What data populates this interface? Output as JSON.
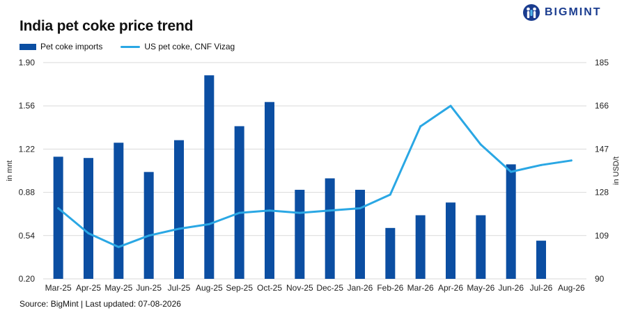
{
  "header": {
    "title": "India pet coke price trend",
    "logo_text": "BIGMINT"
  },
  "footer": {
    "source": "Source: BigMint | Last updated: 07-08-2026"
  },
  "chart_data": {
    "type": "bar",
    "title": "India pet coke price trend",
    "categories": [
      "Mar-25",
      "Apr-25",
      "May-25",
      "Jun-25",
      "Jul-25",
      "Aug-25",
      "Sep-25",
      "Oct-25",
      "Nov-25",
      "Dec-25",
      "Jan-26",
      "Feb-26",
      "Mar-26",
      "Apr-26",
      "May-26",
      "Jun-26",
      "Jul-26",
      "Aug-26"
    ],
    "series": [
      {
        "name": "Pet coke imports",
        "type": "bar",
        "axis": "left",
        "color": "#0b4ea2",
        "values": [
          1.16,
          1.15,
          1.27,
          1.04,
          1.29,
          1.8,
          1.4,
          1.59,
          0.9,
          0.99,
          0.9,
          0.6,
          0.7,
          0.8,
          0.7,
          1.1,
          0.5,
          null
        ]
      },
      {
        "name": "US pet coke, CNF Vizag",
        "type": "line",
        "axis": "right",
        "color": "#2aa7e4",
        "values": [
          121,
          110,
          104,
          109,
          112,
          114,
          119,
          120,
          119,
          120,
          121,
          127,
          157,
          166,
          149,
          137,
          140,
          142
        ]
      }
    ],
    "left_axis": {
      "label": "in mnt",
      "min": 0.2,
      "max": 1.9,
      "ticks": [
        "0.20",
        "0.54",
        "0.88",
        "1.22",
        "1.56",
        "1.90"
      ]
    },
    "right_axis": {
      "label": "in USD/t",
      "min": 90,
      "max": 185,
      "ticks": [
        "90",
        "109",
        "128",
        "147",
        "166",
        "185"
      ]
    },
    "grid": true,
    "legend": "top-left"
  }
}
